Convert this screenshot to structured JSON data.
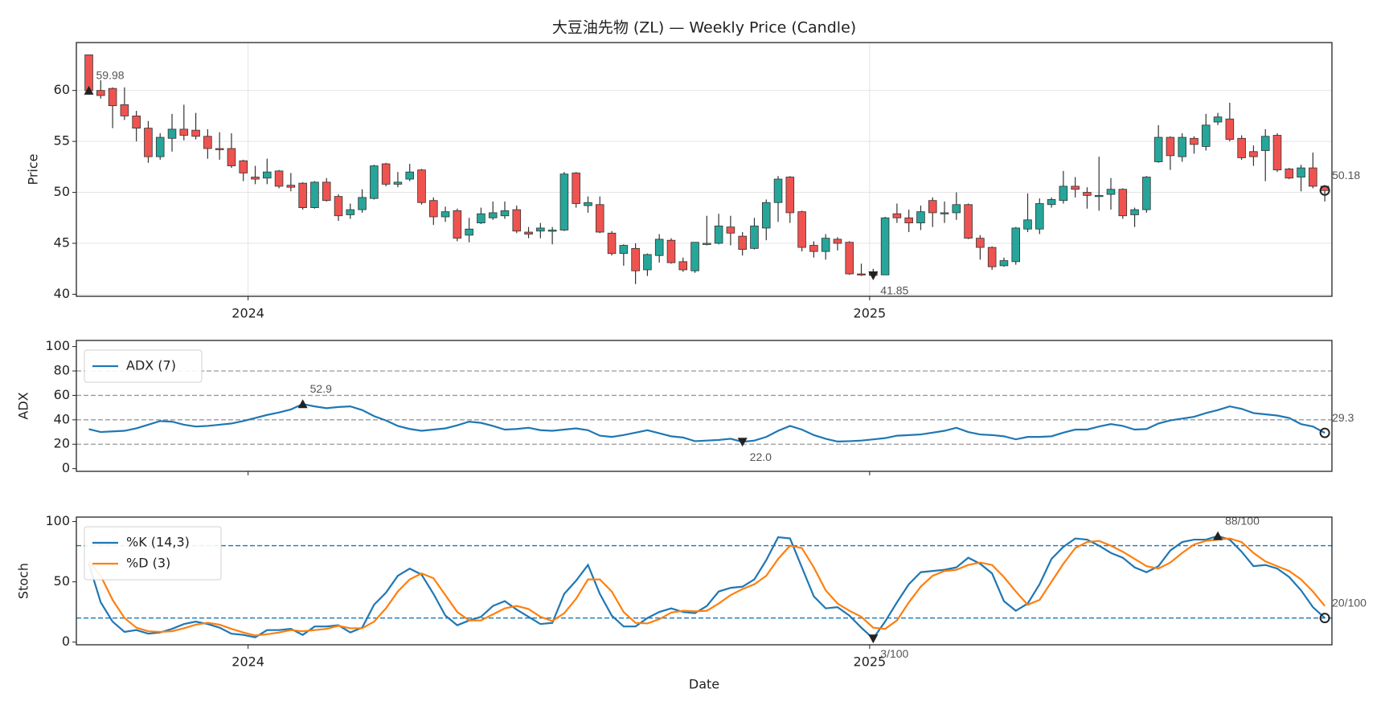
{
  "chart_data": [
    {
      "type": "candlestick",
      "title": "大豆油先物 (ZL) — Weekly Price (Candle)",
      "ylabel": "Price",
      "open": [
        63.5,
        60.0,
        60.2,
        58.6,
        57.5,
        56.3,
        53.5,
        55.3,
        56.2,
        56.1,
        55.5,
        54.3,
        54.3,
        53.1,
        51.5,
        51.4,
        52.1,
        50.7,
        50.9,
        48.5,
        51.0,
        49.6,
        47.8,
        48.3,
        49.4,
        52.8,
        50.8,
        51.3,
        52.2,
        49.2,
        47.6,
        48.2,
        45.8,
        47.0,
        47.5,
        47.7,
        48.3,
        46.1,
        46.2,
        46.2,
        46.3,
        51.9,
        48.7,
        48.8,
        46.0,
        44.0,
        44.5,
        42.4,
        43.8,
        45.3,
        43.2,
        42.3,
        44.9,
        45.0,
        46.6,
        45.7,
        44.5,
        46.5,
        49.0,
        51.5,
        48.1,
        44.8,
        44.2,
        45.4,
        45.1,
        42.0,
        42.2,
        41.9,
        47.9,
        47.5,
        47.0,
        49.2,
        47.9,
        48.0,
        48.8,
        45.5,
        44.6,
        42.8,
        43.2,
        46.4,
        46.4,
        48.8,
        49.2,
        50.6,
        50.0,
        49.6,
        49.8,
        50.3,
        47.8,
        48.3,
        53.0,
        55.4,
        53.5,
        55.3,
        54.5,
        56.9,
        57.2,
        55.3,
        54.0,
        54.1,
        55.6,
        52.3,
        51.5,
        52.4,
        50.6
      ],
      "high": [
        63.5,
        61.0,
        60.3,
        60.3,
        58,
        57,
        55.8,
        57.7,
        58.6,
        57.8,
        56.2,
        55.9,
        55.8,
        53.2,
        52.6,
        53.3,
        52.2,
        51.9,
        51.0,
        51.1,
        51.4,
        49.8,
        48.9,
        50.3,
        52.7,
        52.9,
        52.0,
        52.8,
        52.3,
        49.5,
        48.6,
        48.4,
        47.5,
        48.5,
        49.1,
        49.1,
        48.7,
        46.6,
        47.0,
        46.6,
        52.0,
        52.0,
        49.6,
        49.6,
        46.2,
        44.9,
        45.0,
        44.0,
        45.9,
        45.5,
        43.6,
        45.1,
        47.7,
        47.9,
        47.7,
        46.1,
        47.5,
        49.3,
        51.6,
        51.6,
        48.2,
        45.2,
        45.9,
        45.6,
        45.2,
        43.0,
        42.5,
        47.6,
        48.9,
        48.3,
        48.7,
        49.5,
        49.1,
        50.0,
        48.9,
        45.8,
        44.7,
        43.6,
        46.6,
        49.9,
        49.4,
        49.5,
        52.1,
        51.5,
        50.5,
        53.5,
        51.4,
        50.4,
        48.5,
        51.6,
        56.6,
        55.5,
        55.8,
        55.5,
        57.7,
        57.8,
        58.8,
        55.6,
        54.6,
        56.2,
        55.8,
        52.4,
        52.7,
        53.9,
        50.7
      ],
      "low": [
        59.9,
        59.2,
        56.3,
        57.1,
        55,
        52.9,
        53.2,
        54.0,
        55.1,
        55.2,
        53.3,
        53.2,
        52.4,
        51.1,
        50.8,
        50.8,
        50.4,
        50.1,
        48.3,
        48.4,
        49.1,
        47.2,
        47.4,
        48.0,
        49.3,
        50.6,
        50.5,
        51.1,
        48.8,
        46.8,
        47.1,
        45.2,
        45.1,
        46.9,
        47.3,
        47.4,
        46.0,
        45.5,
        45.5,
        44.9,
        46.2,
        48.5,
        48.0,
        46.0,
        43.8,
        42.8,
        41.0,
        41.8,
        43.1,
        43.0,
        42.2,
        42.1,
        44.8,
        44.9,
        44.8,
        43.8,
        44.4,
        45.3,
        47.1,
        47.0,
        44.2,
        43.6,
        43.4,
        44.3,
        41.9,
        41.8,
        41.6,
        41.9,
        47.0,
        46.1,
        46.3,
        46.6,
        47.0,
        47.3,
        45.4,
        43.4,
        42.4,
        42.7,
        42.9,
        46.1,
        45.9,
        48.5,
        48.9,
        49.5,
        48.4,
        48.2,
        48.3,
        47.4,
        46.6,
        48.0,
        52.9,
        52.2,
        53.0,
        53.8,
        54.1,
        56.6,
        55.0,
        53.2,
        52.6,
        51.1,
        52.0,
        51.3,
        50.1,
        50.4,
        49.1
      ],
      "close": [
        59.98,
        59.5,
        58.5,
        57.5,
        56.3,
        53.5,
        55.4,
        56.2,
        55.6,
        55.5,
        54.3,
        54.2,
        52.6,
        51.9,
        51.3,
        52.0,
        50.6,
        50.5,
        48.5,
        51.0,
        49.2,
        47.7,
        48.3,
        49.5,
        52.6,
        50.8,
        51.0,
        52.0,
        49.0,
        47.6,
        48.1,
        45.5,
        46.4,
        47.9,
        48.0,
        48.2,
        46.2,
        45.9,
        46.5,
        46.3,
        51.8,
        48.9,
        49.0,
        46.1,
        44.0,
        44.8,
        42.3,
        43.9,
        45.4,
        43.1,
        42.4,
        45.1,
        45.0,
        46.7,
        46.0,
        44.4,
        46.7,
        49.0,
        51.3,
        48.0,
        44.6,
        44.2,
        45.5,
        45.0,
        42.0,
        41.9,
        41.85,
        47.5,
        47.5,
        47.0,
        48.1,
        48.0,
        48.0,
        48.8,
        45.5,
        44.6,
        42.7,
        43.3,
        46.5,
        47.3,
        48.9,
        49.3,
        50.6,
        50.3,
        49.7,
        49.7,
        50.3,
        47.7,
        48.3,
        51.5,
        55.4,
        53.6,
        55.4,
        54.7,
        56.6,
        57.4,
        55.2,
        53.4,
        53.5,
        55.5,
        52.2,
        51.4,
        52.4,
        50.6,
        50.18
      ],
      "up_color": "#26a69a",
      "down_color": "#ef5350",
      "xlim": [
        -1.05,
        104.6
      ],
      "xticks": [
        {
          "value": 13.4,
          "label": "2024"
        },
        {
          "value": 65.7,
          "label": "2025"
        }
      ],
      "ylim": [
        39.8,
        64.7
      ],
      "yticks": [
        40,
        45,
        50,
        55,
        60
      ],
      "grid": true,
      "annotations": [
        "59.98",
        "41.85",
        "50.18"
      ]
    },
    {
      "type": "line",
      "ylabel": "ADX",
      "series": [
        {
          "name": "ADX (7)",
          "color": "#1f77b4",
          "values": [
            32.4,
            30,
            30.5,
            31,
            33,
            36,
            39,
            38.5,
            36,
            34.5,
            35,
            36,
            37,
            39,
            41.5,
            44,
            46,
            48.5,
            52.9,
            51,
            49.5,
            50.5,
            51,
            48,
            43,
            39.5,
            35,
            32.5,
            31,
            32,
            33,
            35.5,
            38.5,
            37.5,
            35,
            32,
            32.5,
            33.5,
            31.5,
            31,
            32,
            33,
            31.5,
            27,
            26,
            27.5,
            29.5,
            31.5,
            29,
            26.5,
            25.5,
            22.5,
            23,
            23.5,
            24.5,
            22,
            23,
            26,
            31,
            35,
            32,
            27.5,
            24.5,
            22.2,
            22.5,
            23,
            24,
            25,
            27,
            27.5,
            28,
            29.5,
            31,
            33.5,
            30,
            28,
            27.5,
            26.5,
            24,
            26,
            26,
            26.5,
            29.5,
            32,
            32,
            34.5,
            36.5,
            35,
            32,
            32.5,
            37,
            39.5,
            41,
            42.5,
            45.5,
            48,
            51,
            49,
            45.5,
            44.5,
            43.5,
            41.5,
            36.5,
            34.5,
            29.3
          ]
        }
      ],
      "ylim": [
        -2.2,
        105
      ],
      "yticks": [
        0,
        20,
        40,
        60,
        80,
        100
      ],
      "hlines": [
        20,
        40,
        60,
        80
      ],
      "hline_color": "#999999",
      "legend": "upper left",
      "annotations": [
        "52.9",
        "22.0",
        "29.3"
      ]
    },
    {
      "type": "line",
      "ylabel": "Stoch",
      "xlabel": "Date",
      "series": [
        {
          "name": "%K (14,3)",
          "color": "#1f77b4",
          "values": [
            65,
            33,
            17,
            8.5,
            10,
            7,
            8,
            11,
            15,
            17,
            15,
            12,
            7,
            6,
            4,
            10,
            10,
            11,
            6,
            13,
            13,
            14,
            8,
            12,
            31,
            41,
            55,
            61,
            56,
            40,
            22,
            14,
            18,
            21,
            30,
            34,
            27,
            21,
            15,
            16,
            40,
            51,
            64,
            40,
            22,
            13,
            13,
            20,
            25,
            28,
            25,
            24,
            30,
            42,
            45,
            46,
            52,
            68,
            87,
            86,
            62,
            38,
            28,
            29,
            22,
            12,
            3,
            17,
            33,
            48,
            58,
            59,
            60,
            62,
            70,
            65,
            57,
            34,
            26,
            32,
            48,
            69,
            79,
            86,
            85,
            80,
            74,
            70,
            62,
            58,
            63,
            76,
            83,
            85,
            85,
            88,
            85,
            75,
            63,
            64,
            61,
            54,
            43,
            29,
            20
          ]
        },
        {
          "name": "%D (3)",
          "color": "#ff7f0e",
          "values": [
            67,
            55,
            35,
            20,
            12,
            9,
            8.5,
            9,
            11.5,
            14.5,
            16,
            14.5,
            11,
            8,
            5.5,
            6.5,
            8,
            10,
            9,
            10,
            11,
            13.5,
            11.5,
            11.5,
            17,
            28,
            42,
            52,
            57,
            53,
            39,
            25,
            18,
            18,
            23,
            28,
            30,
            27.5,
            21,
            17.5,
            24,
            36,
            52,
            52,
            42,
            25,
            16,
            15.5,
            19,
            24.5,
            26,
            25.5,
            26,
            32,
            39,
            44,
            48,
            55,
            69,
            80,
            78,
            62,
            43,
            32,
            26,
            21,
            12,
            11,
            18,
            33,
            46,
            55,
            59,
            60,
            64,
            66,
            64,
            54,
            42,
            31,
            35,
            50,
            65,
            78,
            83,
            84,
            80,
            75,
            69,
            63,
            61,
            66,
            74,
            81,
            84,
            85,
            86,
            83,
            74,
            67,
            63,
            59,
            52,
            42,
            30
          ]
        }
      ],
      "xticks": [
        {
          "value": 13.4,
          "label": "2024"
        },
        {
          "value": 65.7,
          "label": "2025"
        }
      ],
      "ylim": [
        -2.2,
        103.7
      ],
      "yticks": [
        0,
        50,
        100
      ],
      "hlines": [
        20,
        80
      ],
      "hline_color": "#1f77b4",
      "legend": "upper left",
      "annotations": [
        "88/100",
        "3/100",
        "20/100"
      ]
    }
  ]
}
